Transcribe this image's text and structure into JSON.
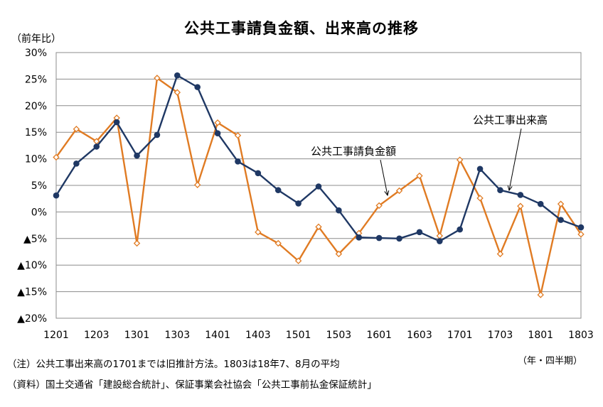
{
  "title": "公共工事請負金額、出来高の推移",
  "y_unit_label": "（前年比）",
  "x_unit_label": "（年・四半期）",
  "notes": {
    "note1": "（注）公共工事出来高の1701までは旧推計方法。1803は18年7、8月の平均",
    "note2": "（資料）国土交通省「建設総合統計」、保証事業会社協会「公共工事前払金保証統計」"
  },
  "colors": {
    "orange_series": "#E07B23",
    "navy_series": "#1F3864"
  },
  "chart_data": {
    "type": "line",
    "title": "公共工事請負金額、出来高の推移",
    "ylabel": "（前年比）",
    "xlabel": "（年・四半期）",
    "ylim": [
      -20,
      30
    ],
    "grid": true,
    "y_ticks": [
      30,
      25,
      20,
      15,
      10,
      5,
      0,
      -5,
      -10,
      -15,
      -20
    ],
    "y_tick_labels": [
      "30%",
      "25%",
      "20%",
      "15%",
      "10%",
      "5%",
      "0%",
      "▲5%",
      "▲10%",
      "▲15%",
      "▲20%"
    ],
    "x": [
      "1201",
      "1202",
      "1203",
      "1204",
      "1301",
      "1302",
      "1303",
      "1304",
      "1401",
      "1402",
      "1403",
      "1404",
      "1501",
      "1502",
      "1503",
      "1504",
      "1601",
      "1602",
      "1603",
      "1604",
      "1701",
      "1702",
      "1703",
      "1704",
      "1801",
      "1802",
      "1803"
    ],
    "x_tick_labels": [
      "1201",
      "1203",
      "1301",
      "1303",
      "1401",
      "1403",
      "1501",
      "1503",
      "1601",
      "1603",
      "1701",
      "1703",
      "1801",
      "1803"
    ],
    "series": [
      {
        "name": "公共工事請負金額",
        "color": "#E07B23",
        "marker": "diamond-open",
        "values": [
          10.3,
          15.6,
          13.3,
          17.7,
          -5.9,
          25.2,
          22.5,
          5.1,
          16.8,
          14.4,
          -3.8,
          -5.9,
          -9.2,
          -2.8,
          -7.9,
          -4.0,
          1.2,
          4.0,
          6.8,
          -4.5,
          9.8,
          2.6,
          -7.9,
          1.1,
          -15.6,
          1.5,
          -4.2
        ]
      },
      {
        "name": "公共工事出来高",
        "color": "#1F3864",
        "marker": "circle-filled",
        "values": [
          3.1,
          9.1,
          12.3,
          16.9,
          10.6,
          14.5,
          25.7,
          23.5,
          14.8,
          9.5,
          7.3,
          4.1,
          1.6,
          4.8,
          0.3,
          -4.8,
          -4.9,
          -5.0,
          -3.8,
          -5.5,
          -3.3,
          8.1,
          4.1,
          3.2,
          1.5,
          -1.5,
          -2.9
        ]
      }
    ],
    "annotations": [
      {
        "text": "公共工事請負金額",
        "points_to": "公共工事請負金額"
      },
      {
        "text": "公共工事出来高",
        "points_to": "公共工事出来高"
      }
    ]
  }
}
